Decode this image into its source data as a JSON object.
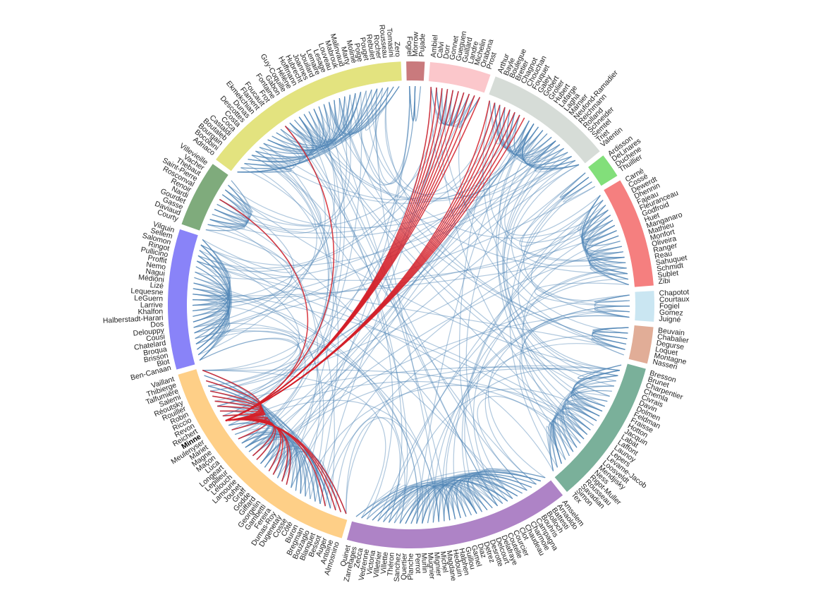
{
  "colors": {
    "edge_normal": "#4f84b5",
    "edge_highlight": "#d32029"
  },
  "highlighted_node": "Minne",
  "groups": [
    {
      "id": "g1",
      "color": "#c97a7d",
      "members": [
        "Fogiel",
        "Morrow",
        "Pujade"
      ]
    },
    {
      "id": "g2",
      "color": "#fbc7cb",
      "members": [
        "Ambiel",
        "Calvi",
        "Dorr",
        "Gonnet",
        "Gueguen",
        "Guillard",
        "Landre",
        "Michelin",
        "Orabona",
        "Prost"
      ]
    },
    {
      "id": "g3",
      "color": "#d6dcd7",
      "members": [
        "Arthur",
        "Bayle",
        "Boulegue",
        "Bretier",
        "Chagnot",
        "Chouchan",
        "Fouquet",
        "Galey",
        "Gobert",
        "Grolier",
        "Hubert",
        "Lafarge",
        "Lagha",
        "Marnier",
        "Neufond-Ramadier",
        "Reichmann",
        "Rolland",
        "Schneider",
        "Semtel",
        "Triet",
        "Valentin"
      ]
    },
    {
      "id": "g4",
      "color": "#82df7a",
      "members": [
        "Ardisson",
        "DeLinares",
        "Duchene",
        "Thuillier"
      ]
    },
    {
      "id": "g5",
      "color": "#f57f7f",
      "members": [
        "Carné",
        "Cossé",
        "Dewerdt",
        "Dhennin",
        "Fajeau",
        "Fleuranceau",
        "Godfroid",
        "Huet",
        "Manganaro",
        "Mathieu",
        "Monfort",
        "Oliveira",
        "Ranger",
        "Reau",
        "Sahuquet",
        "Schmidt",
        "Sublet",
        "Zibi"
      ]
    },
    {
      "id": "g6",
      "color": "#cae6f2",
      "members": [
        "Chapotot",
        "Courtaux",
        "Fogiel",
        "Gomez",
        "Juigné"
      ]
    },
    {
      "id": "g7",
      "color": "#e1ad97",
      "members": [
        "Beuvain",
        "Chabalier",
        "Degurse",
        "Loquet",
        "Montagne",
        "Nasseri"
      ]
    },
    {
      "id": "g8",
      "color": "#7ab09a",
      "members": [
        "Bresson",
        "Brunet",
        "Charpentier",
        "Chemla",
        "Civrais",
        "Davin",
        "Dolmen",
        "Feldman",
        "Fraisse",
        "Hotton",
        "Jacquin",
        "Labat",
        "Laffont",
        "Launoy",
        "Lepers",
        "Levame-Jacob",
        "Loosveldt",
        "Mendjisky",
        "Ness",
        "Rigot-Muller",
        "Rousseau",
        "Savadian",
        "Simon",
        "Tex"
      ]
    },
    {
      "id": "g9",
      "color": "#ae83c6",
      "members": [
        "Amselem",
        "Arnaoldo",
        "Battesti",
        "Bolloch",
        "Bouhris",
        "Campagna",
        "Charmoie",
        "Chaudeau",
        "Clot",
        "Courcier",
        "Coutelle",
        "Delafraye",
        "Delcourt",
        "Desrotte",
        "Detrez",
        "Diaz",
        "Gamel",
        "Guillou",
        "Halphen",
        "Hedouin",
        "Magdane",
        "Michel",
        "Mignier",
        "Mugnier",
        "Murlin",
        "Perrot",
        "Planche",
        "Quertier",
        "Sanchez",
        "Théron",
        "Villette",
        "Villetrier",
        "Victoria",
        "Vedrenne",
        "Zecca",
        "Zarrefages",
        "Quinet"
      ]
    },
    {
      "id": "g10",
      "color": "#fecf87",
      "members": [
        "Almosnino",
        "Antoine",
        "Auger",
        "Bessot",
        "Blanquet",
        "Bouzaglo",
        "Bregman",
        "Buron",
        "Côté",
        "Cosse",
        "Dugenetay",
        "Dumas-Roy",
        "Fereira",
        "Gambetti",
        "Georgelin",
        "Giffard",
        "Godde",
        "Graff",
        "Jouhet",
        "Lamourie",
        "Lelouch",
        "Lepilleur",
        "Longeart",
        "Luca",
        "Maçon",
        "Magne",
        "Mariet",
        "Meulenyser",
        "Minne",
        "Reichert",
        "Revon",
        "Riccio",
        "Robin",
        "Rouiller",
        "Réoutsky",
        "Salemi",
        "Talfumière",
        "Thibierge",
        "Vaillant"
      ]
    },
    {
      "id": "g11",
      "color": "#8983f8",
      "members": [
        "Ben-Canaan",
        "Blot",
        "Brisson",
        "Broqua",
        "Chatelard",
        "Cousi",
        "Delouppy",
        "Dos",
        "Halberstadt-Harari",
        "Khalfon",
        "Larrive",
        "LeGuern",
        "Lequesne",
        "Lizé",
        "Médioni",
        "Nagui",
        "Nemo",
        "Proffit",
        "Pullicino",
        "Ringot",
        "Salomon",
        "Sellem",
        "Vilquin"
      ]
    },
    {
      "id": "g12",
      "color": "#7fab7c",
      "members": [
        "Courty",
        "Daviaud",
        "Gasse",
        "Gourdet",
        "Nardi",
        "Renoir",
        "Rosconval",
        "Saint-Pierre",
        "Thebaut",
        "Vacher",
        "Villevieille"
      ]
    },
    {
      "id": "g13",
      "color": "#e3e37f",
      "members": [
        "Adriaco",
        "Bocobini",
        "Bourgain",
        "Boutaleb",
        "Castaldi",
        "Coca",
        "Costa",
        "Descottes",
        "Dunas",
        "Ekmekchian",
        "Flament",
        "Foucault",
        "Frot",
        "Fontaine",
        "Gabon",
        "Guy-Coquille",
        "Hélène",
        "Hoffmann",
        "Hubrecht",
        "Joannes",
        "Jouilard",
        "Lemaire",
        "Lesage",
        "Louveau",
        "Mabrouk",
        "Malinvaud",
        "Marty",
        "Molinié",
        "Poige",
        "Pouget",
        "Rebulet",
        "Rocher",
        "Rousseau",
        "Tomasini",
        "Zero"
      ]
    }
  ]
}
